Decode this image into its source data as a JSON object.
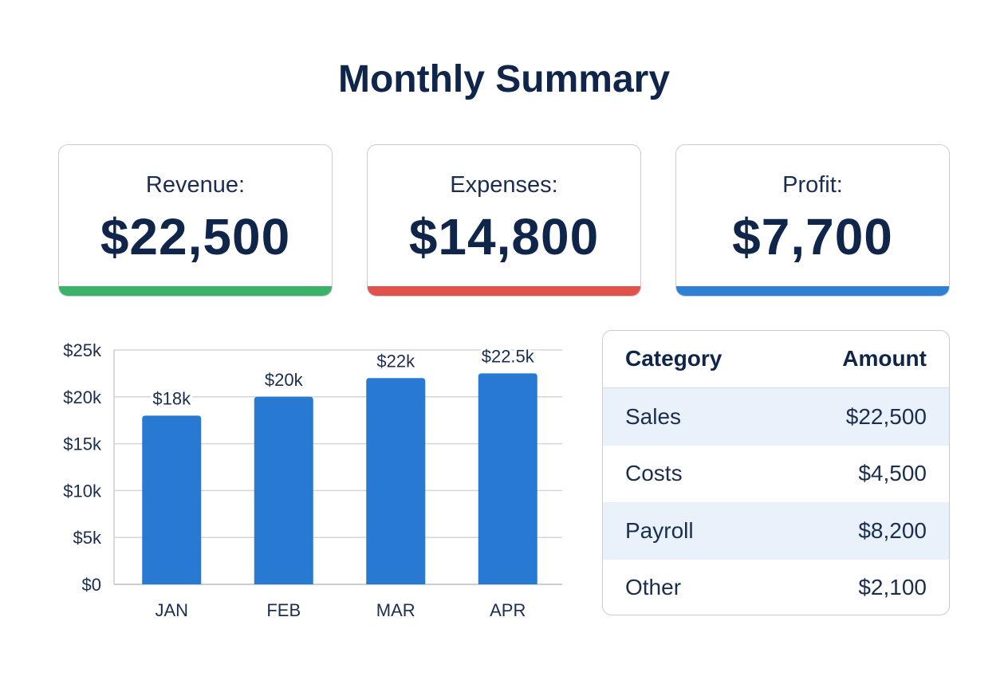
{
  "title": "Monthly Summary",
  "cards": [
    {
      "label": "Revenue:",
      "value": "$22,500",
      "accent": "#3bb26a"
    },
    {
      "label": "Expenses:",
      "value": "$14,800",
      "accent": "#e0524a"
    },
    {
      "label": "Profit:",
      "value": "$7,700",
      "accent": "#2f7fd4"
    }
  ],
  "chart_data": {
    "type": "bar",
    "categories": [
      "JAN",
      "FEB",
      "MAR",
      "APR"
    ],
    "values": [
      18000,
      20000,
      22000,
      22500
    ],
    "data_labels": [
      "$18k",
      "$20k",
      "$22k",
      "$22.5k"
    ],
    "y_ticks": [
      0,
      5000,
      10000,
      15000,
      20000,
      25000
    ],
    "y_tick_labels": [
      "$0",
      "$5k",
      "$10k",
      "$15k",
      "$20k",
      "$25k"
    ],
    "ylim": [
      0,
      25000
    ],
    "grid": true,
    "bar_color": "#2879d1"
  },
  "table": {
    "headers": [
      "Category",
      "Amount"
    ],
    "rows": [
      [
        "Sales",
        "$22,500"
      ],
      [
        "Costs",
        "$4,500"
      ],
      [
        "Payroll",
        "$8,200"
      ],
      [
        "Other",
        "$2,100"
      ]
    ]
  }
}
